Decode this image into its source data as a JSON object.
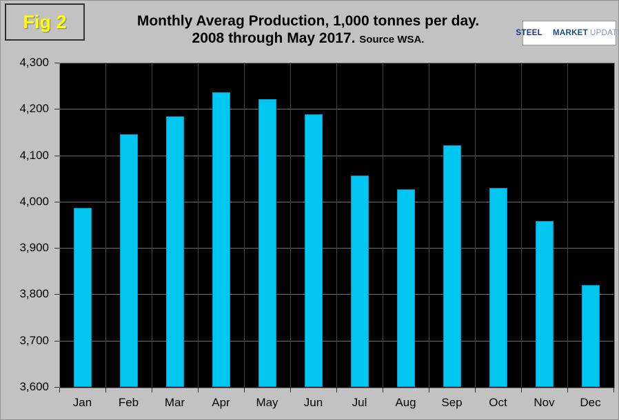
{
  "figure_label": "Fig 2",
  "title": {
    "line1": "Monthly Averag Production, 1,000 tonnes per day.",
    "line2_main": "2008 through May 2017.",
    "line2_source": "Source WSA."
  },
  "logo": {
    "steel": "STEEL",
    "market": "MARKET",
    "update": "UPDATE",
    "crescent_icon": "crescent-icon"
  },
  "colors": {
    "page_background": "#c2c2c2",
    "plot_background": "#000000",
    "bar_fill": "#00c6f2",
    "bar_border": "#0098c8",
    "grid_horizontal": "#6f6f6f",
    "grid_vertical": "#454545",
    "figure_label_text": "#ffff00",
    "logo_orange_top": "#f7941d",
    "logo_orange_bottom": "#cf3227"
  },
  "chart_data": {
    "type": "bar",
    "title": "Monthly Averag Production, 1,000 tonnes per day. 2008 through May 2017. Source WSA.",
    "categories": [
      "Jan",
      "Feb",
      "Mar",
      "Apr",
      "May",
      "Jun",
      "Jul",
      "Aug",
      "Sep",
      "Oct",
      "Nov",
      "Dec"
    ],
    "values": [
      3986,
      4146,
      4184,
      4236,
      4221,
      4188,
      4056,
      4027,
      4122,
      4030,
      3958,
      3820
    ],
    "xlabel": "",
    "ylabel": "",
    "ylim": [
      3600,
      4300
    ],
    "ytick_step": 100,
    "grid": true,
    "legend": false
  }
}
